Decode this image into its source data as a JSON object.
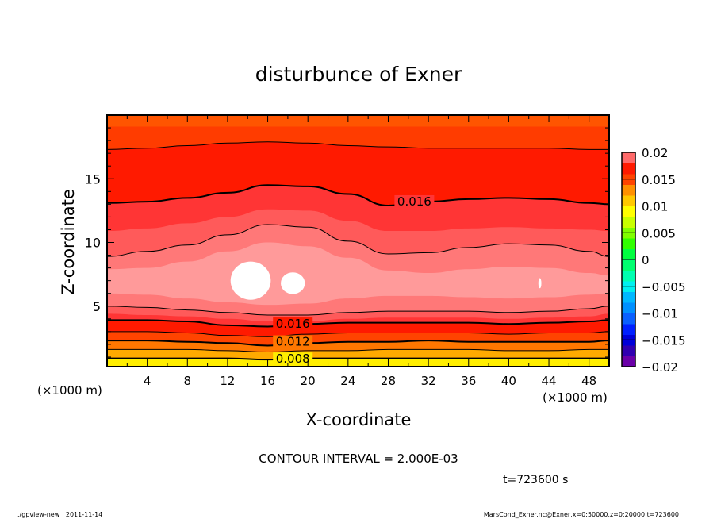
{
  "chart_data": {
    "type": "contour",
    "title": "disturbunce of Exner",
    "xlabel": "X-coordinate",
    "ylabel": "Z-coordinate",
    "x_unit_label": "(×1000 m)",
    "y_unit_label": "(×1000 m)",
    "xlim": [
      0,
      50
    ],
    "ylim": [
      0.25,
      20
    ],
    "x_ticks": [
      4,
      8,
      12,
      16,
      20,
      24,
      28,
      32,
      36,
      40,
      44,
      48
    ],
    "y_ticks": [
      5,
      10,
      15
    ],
    "contour_interval_text": "CONTOUR INTERVAL = 2.000E-03",
    "time_text": "t=723600 s",
    "sample_x": [
      0,
      4,
      8,
      12,
      16,
      20,
      24,
      28,
      32,
      36,
      40,
      44,
      48,
      50
    ],
    "top_fill": "#ff5500",
    "bands": [
      {
        "z": [
          19.1,
          19.1,
          19.1,
          19.1,
          19.1,
          19.1,
          19.1,
          19.1,
          19.1,
          19.1,
          19.1,
          19.1,
          19.1,
          19.1
        ],
        "fill": "#ff3c00",
        "line": 0
      },
      {
        "z": [
          17.3,
          17.4,
          17.6,
          17.8,
          17.9,
          17.8,
          17.6,
          17.5,
          17.4,
          17.4,
          17.4,
          17.4,
          17.3,
          17.3
        ],
        "fill": "#ff1a00",
        "line": 1
      },
      {
        "z": [
          13.1,
          13.2,
          13.5,
          13.9,
          14.5,
          14.4,
          13.8,
          12.9,
          13.2,
          13.4,
          13.5,
          13.4,
          13.1,
          13.0
        ],
        "fill": "#ff3535",
        "line": 2
      },
      {
        "z": [
          10.9,
          11.1,
          11.5,
          12.0,
          12.6,
          12.5,
          11.7,
          10.9,
          10.9,
          11.1,
          11.2,
          11.1,
          11.0,
          10.9
        ],
        "fill": "#ff5a5a",
        "line": 0
      },
      {
        "z": [
          8.9,
          9.3,
          9.8,
          10.6,
          11.4,
          11.2,
          10.1,
          9.1,
          9.2,
          9.6,
          9.9,
          9.8,
          9.3,
          8.9
        ],
        "fill": "#ff7878",
        "line": 1
      },
      {
        "z": [
          7.9,
          8.0,
          8.5,
          9.3,
          10.0,
          9.7,
          8.8,
          7.8,
          7.6,
          7.9,
          8.1,
          8.0,
          7.6,
          7.4
        ],
        "fill": "#ff9a9a",
        "line": 0
      },
      {
        "z": [
          6.0,
          5.9,
          5.6,
          5.3,
          5.1,
          5.2,
          5.6,
          5.8,
          5.8,
          5.7,
          5.6,
          5.7,
          5.9,
          6.0
        ],
        "fill": "#ff7878",
        "line": 0
      },
      {
        "z": [
          5.0,
          4.9,
          4.7,
          4.5,
          4.3,
          4.3,
          4.5,
          4.6,
          4.6,
          4.6,
          4.5,
          4.6,
          4.8,
          5.0
        ],
        "fill": "#ff5a5a",
        "line": 1
      },
      {
        "z": [
          4.4,
          4.3,
          4.2,
          4.0,
          3.8,
          3.8,
          4.0,
          4.1,
          4.1,
          4.1,
          4.0,
          4.1,
          4.2,
          4.4
        ],
        "fill": "#ff3535",
        "line": 0
      },
      {
        "z": [
          3.9,
          3.9,
          3.8,
          3.5,
          3.4,
          3.6,
          3.7,
          3.7,
          3.7,
          3.7,
          3.6,
          3.7,
          3.8,
          3.9
        ],
        "fill": "#ff1a00",
        "line": 2
      },
      {
        "z": [
          3.0,
          3.0,
          2.9,
          2.7,
          2.6,
          2.8,
          2.9,
          2.9,
          2.9,
          2.9,
          2.8,
          2.9,
          2.9,
          3.0
        ],
        "fill": "#ff4400",
        "line": 1
      },
      {
        "z": [
          2.3,
          2.3,
          2.2,
          2.1,
          1.9,
          2.1,
          2.2,
          2.2,
          2.3,
          2.2,
          2.2,
          2.2,
          2.2,
          2.3
        ],
        "fill": "#ff7700",
        "line": 2
      },
      {
        "z": [
          1.6,
          1.6,
          1.6,
          1.5,
          1.4,
          1.5,
          1.5,
          1.6,
          1.6,
          1.6,
          1.5,
          1.5,
          1.6,
          1.6
        ],
        "fill": "#ffaa00",
        "line": 1
      },
      {
        "z": [
          0.9,
          0.9,
          0.9,
          0.9,
          0.8,
          0.9,
          0.9,
          0.9,
          0.9,
          0.9,
          0.9,
          0.9,
          0.9,
          0.9
        ],
        "fill": "#ffee00",
        "line": 2
      }
    ],
    "max_regions": [
      {
        "x": 14.3,
        "z": 7.0,
        "rx": 2.0,
        "rz": 1.5
      },
      {
        "x": 18.5,
        "z": 6.8,
        "rx": 1.2,
        "rz": 0.85
      },
      {
        "x": 43.1,
        "z": 6.8,
        "rx": 0.15,
        "rz": 0.4
      }
    ],
    "contour_labels": [
      {
        "text": "0.016",
        "x": 30.6,
        "z": 12.9
      },
      {
        "text": "0.016",
        "x": 18.5,
        "z": 3.3
      },
      {
        "text": "0.012",
        "x": 18.5,
        "z": 1.9
      },
      {
        "text": "0.008",
        "x": 18.5,
        "z": 0.55
      }
    ],
    "colorbar": {
      "levels_min": -0.02,
      "levels_max": 0.02,
      "tick_labels": [
        "0.02",
        "0.015",
        "0.01",
        "0.005",
        "0",
        "-0.005",
        "-0.01",
        "-0.015",
        "-0.02"
      ],
      "colors": [
        "#6a00a8",
        "#3000b0",
        "#0000d8",
        "#0020ff",
        "#0a60ff",
        "#0090ff",
        "#00b8ff",
        "#00f0f0",
        "#00ffb0",
        "#00ff70",
        "#00ff40",
        "#30ff00",
        "#80ff00",
        "#c8ff00",
        "#ffff00",
        "#ffc800",
        "#ff9000",
        "#ff4400",
        "#ff1a00",
        "#ff6a6a"
      ]
    }
  },
  "footer": {
    "left": "./gpview-new   2011-11-14",
    "right": "MarsCond_Exner.nc@Exner,x=0:50000,z=0:20000,t=723600"
  }
}
